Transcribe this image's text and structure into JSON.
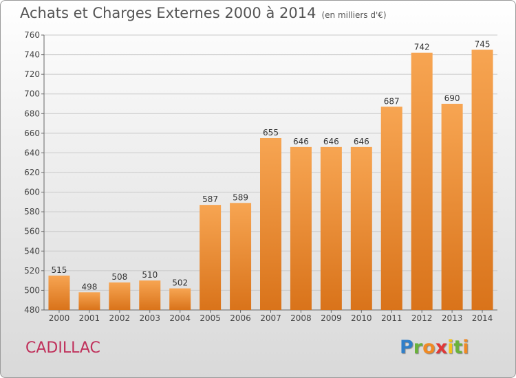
{
  "header": {
    "title": "Achats et Charges Externes 2000 à 2014",
    "unit": "(en milliers d'€)"
  },
  "footer": {
    "commune": "CADILLAC",
    "logo": "Proxiti"
  },
  "colors": {
    "bar_top": "#f7a552",
    "bar_bottom": "#d9731a",
    "grid": "#c8c8c8",
    "commune_text": "#c0325c"
  },
  "chart_data": {
    "type": "bar",
    "title": "Achats et Charges Externes 2000 à 2014",
    "subtitle": "(en milliers d'€)",
    "categories": [
      "2000",
      "2001",
      "2002",
      "2003",
      "2004",
      "2005",
      "2006",
      "2007",
      "2008",
      "2009",
      "2010",
      "2011",
      "2012",
      "2013",
      "2014"
    ],
    "values": [
      515,
      498,
      508,
      510,
      502,
      587,
      589,
      655,
      646,
      646,
      646,
      687,
      742,
      690,
      745
    ],
    "ylim": [
      480,
      760
    ],
    "yticks": [
      480,
      500,
      520,
      540,
      560,
      580,
      600,
      620,
      640,
      660,
      680,
      700,
      720,
      740,
      760
    ],
    "grid": true,
    "data_labels": true
  }
}
